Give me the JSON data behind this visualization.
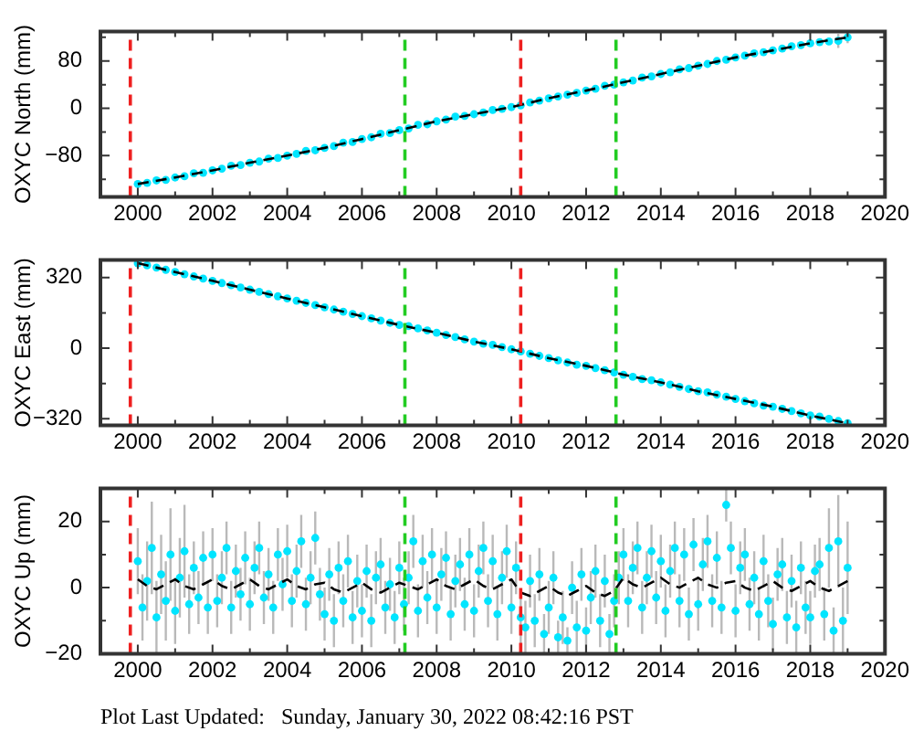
{
  "chart_data": [
    {
      "type": "scatter",
      "ylabel": "OXYC North (mm)",
      "xlim": [
        1999,
        2020
      ],
      "xticks": [
        2000,
        {
          "value": 2001,
          "label": null
        },
        2002,
        {
          "value": 2003,
          "label": null
        },
        2004,
        {
          "value": 2005,
          "label": null
        },
        2006,
        {
          "value": 2007,
          "label": null
        },
        2008,
        {
          "value": 2009,
          "label": null
        },
        2010,
        {
          "value": 2011,
          "label": null
        },
        2012,
        {
          "value": 2013,
          "label": null
        },
        2014,
        {
          "value": 2015,
          "label": null
        },
        2016,
        {
          "value": 2017,
          "label": null
        },
        2018,
        {
          "value": 2019,
          "label": null
        },
        2020
      ],
      "ylim": [
        -150,
        130
      ],
      "yticks": [
        {
          "value": -120,
          "label": null
        },
        {
          "value": -80,
          "label": "−80"
        },
        {
          "value": -40,
          "label": null
        },
        0,
        {
          "value": 40,
          "label": null
        },
        80,
        {
          "value": 120,
          "label": null
        }
      ],
      "x": [
        2000,
        2000.25,
        2000.5,
        2000.75,
        2001,
        2001.25,
        2001.5,
        2001.75,
        2002,
        2002.25,
        2002.5,
        2002.75,
        2003,
        2003.25,
        2003.5,
        2003.75,
        2004,
        2004.25,
        2004.5,
        2004.75,
        2005,
        2005.25,
        2005.5,
        2005.75,
        2006,
        2006.25,
        2006.5,
        2006.75,
        2007,
        2007.25,
        2007.5,
        2007.75,
        2008,
        2008.25,
        2008.5,
        2008.75,
        2009,
        2009.25,
        2009.5,
        2009.75,
        2010,
        2010.25,
        2010.5,
        2010.75,
        2011,
        2011.25,
        2011.5,
        2011.75,
        2012,
        2012.25,
        2012.5,
        2012.75,
        2013,
        2013.25,
        2013.5,
        2013.75,
        2014,
        2014.25,
        2014.5,
        2014.75,
        2015,
        2015.25,
        2015.5,
        2015.75,
        2016,
        2016.25,
        2016.5,
        2016.75,
        2017,
        2017.25,
        2017.5,
        2017.75,
        2018,
        2018.25,
        2018.5,
        2018.75,
        2019
      ],
      "series": [
        {
          "type": "scatter",
          "color": "#00e5ff",
          "marker": "circle",
          "values": [
            -128,
            -126,
            -122,
            -121,
            -117,
            -115,
            -110,
            -109,
            -105,
            -102,
            -97,
            -96,
            -92,
            -90,
            -85,
            -84,
            -80,
            -77,
            -72,
            -71,
            -67,
            -64,
            -58,
            -57,
            -52,
            -49,
            -43,
            -42,
            -37,
            -34,
            -28,
            -27,
            -22,
            -19,
            -14,
            -13,
            -10,
            -7,
            -3,
            -1,
            2,
            5,
            10,
            13,
            17,
            20,
            23,
            26,
            30,
            33,
            38,
            40,
            44,
            47,
            52,
            54,
            58,
            61,
            66,
            68,
            72,
            75,
            80,
            82,
            86,
            89,
            93,
            95,
            98,
            101,
            105,
            107,
            110,
            112,
            113,
            114,
            120
          ],
          "errors": [
            null,
            null,
            null,
            null,
            null,
            null,
            null,
            null,
            null,
            null,
            null,
            null,
            null,
            null,
            null,
            null,
            null,
            null,
            null,
            null,
            null,
            null,
            null,
            null,
            null,
            null,
            null,
            null,
            null,
            null,
            null,
            null,
            null,
            null,
            null,
            null,
            null,
            null,
            null,
            null,
            null,
            null,
            null,
            null,
            null,
            null,
            null,
            null,
            null,
            null,
            null,
            null,
            null,
            null,
            null,
            null,
            null,
            null,
            null,
            null,
            null,
            null,
            null,
            null,
            null,
            null,
            null,
            null,
            null,
            null,
            null,
            null,
            null,
            null,
            null,
            12,
            10
          ]
        },
        {
          "type": "line",
          "color": "#000000",
          "marker": "none",
          "line_style": "dashed",
          "x": [
            2000,
            2001,
            2002,
            2003,
            2004,
            2005,
            2006,
            2007,
            2008,
            2009,
            2010,
            2011,
            2012,
            2013,
            2014,
            2015,
            2016,
            2017,
            2018,
            2019
          ],
          "values": [
            -128,
            -117,
            -105,
            -92,
            -80,
            -67,
            -52,
            -37,
            -22,
            -10,
            2,
            17,
            30,
            44,
            58,
            72,
            86,
            98,
            110,
            120
          ]
        }
      ],
      "ref_lines": [
        {
          "axis": "x",
          "value": 1999.8,
          "color": "#ee2020",
          "line_style": "dashed"
        },
        {
          "axis": "x",
          "value": 2007.15,
          "color": "#22cc22",
          "line_style": "dashed"
        },
        {
          "axis": "x",
          "value": 2010.25,
          "color": "#ee2020",
          "line_style": "dashed"
        },
        {
          "axis": "x",
          "value": 2012.8,
          "color": "#22cc22",
          "line_style": "dashed"
        }
      ]
    },
    {
      "type": "scatter",
      "ylabel": "OXYC East (mm)",
      "xlim": [
        1999,
        2020
      ],
      "xticks": [
        2000,
        {
          "value": 2001,
          "label": null
        },
        2002,
        {
          "value": 2003,
          "label": null
        },
        2004,
        {
          "value": 2005,
          "label": null
        },
        2006,
        {
          "value": 2007,
          "label": null
        },
        2008,
        {
          "value": 2009,
          "label": null
        },
        2010,
        {
          "value": 2011,
          "label": null
        },
        2012,
        {
          "value": 2013,
          "label": null
        },
        2014,
        {
          "value": 2015,
          "label": null
        },
        2016,
        {
          "value": 2017,
          "label": null
        },
        2018,
        {
          "value": 2019,
          "label": null
        },
        2020
      ],
      "ylim": [
        -350,
        400
      ],
      "yticks": [
        {
          "value": -320,
          "label": "−320"
        },
        {
          "value": -160,
          "label": null
        },
        0,
        {
          "value": 160,
          "label": null
        },
        320
      ],
      "x": [
        2000,
        2000.25,
        2000.5,
        2000.75,
        2001,
        2001.25,
        2001.5,
        2001.75,
        2002,
        2002.25,
        2002.5,
        2002.75,
        2003,
        2003.25,
        2003.5,
        2003.75,
        2004,
        2004.25,
        2004.5,
        2004.75,
        2005,
        2005.25,
        2005.5,
        2005.75,
        2006,
        2006.25,
        2006.5,
        2006.75,
        2007,
        2007.25,
        2007.5,
        2007.75,
        2008,
        2008.25,
        2008.5,
        2008.75,
        2009,
        2009.25,
        2009.5,
        2009.75,
        2010,
        2010.25,
        2010.5,
        2010.75,
        2011,
        2011.25,
        2011.5,
        2011.75,
        2012,
        2012.25,
        2012.5,
        2012.75,
        2013,
        2013.25,
        2013.5,
        2013.75,
        2014,
        2014.25,
        2014.5,
        2014.75,
        2015,
        2015.25,
        2015.5,
        2015.75,
        2016,
        2016.25,
        2016.5,
        2016.75,
        2017,
        2017.25,
        2017.5,
        2017.75,
        2018,
        2018.25,
        2018.5,
        2018.75,
        2019
      ],
      "series": [
        {
          "type": "scatter",
          "color": "#00e5ff",
          "marker": "circle",
          "values": [
            385,
            375,
            365,
            355,
            345,
            335,
            325,
            315,
            305,
            295,
            285,
            275,
            265,
            255,
            245,
            235,
            225,
            215,
            205,
            195,
            185,
            175,
            165,
            155,
            145,
            135,
            125,
            115,
            105,
            100,
            90,
            80,
            70,
            60,
            50,
            40,
            30,
            20,
            15,
            5,
            -5,
            -15,
            -25,
            -35,
            -45,
            -55,
            -65,
            -75,
            -80,
            -90,
            -100,
            -110,
            -120,
            -130,
            -140,
            -145,
            -155,
            -165,
            -175,
            -185,
            -195,
            -200,
            -210,
            -220,
            -230,
            -240,
            -250,
            -260,
            -265,
            -275,
            -285,
            -295,
            -305,
            -310,
            -320,
            -330,
            -340
          ]
        },
        {
          "type": "line",
          "color": "#000000",
          "marker": "none",
          "line_style": "dashed",
          "x": [
            2000,
            2001,
            2002,
            2003,
            2004,
            2005,
            2006,
            2007,
            2008,
            2009,
            2010,
            2011,
            2012,
            2013,
            2014,
            2015,
            2016,
            2017,
            2018,
            2019
          ],
          "values": [
            385,
            345,
            305,
            265,
            225,
            185,
            145,
            105,
            70,
            30,
            -5,
            -45,
            -80,
            -120,
            -155,
            -195,
            -230,
            -265,
            -305,
            -340
          ]
        }
      ],
      "ref_lines": [
        {
          "axis": "x",
          "value": 1999.8,
          "color": "#ee2020",
          "line_style": "dashed"
        },
        {
          "axis": "x",
          "value": 2007.15,
          "color": "#22cc22",
          "line_style": "dashed"
        },
        {
          "axis": "x",
          "value": 2010.25,
          "color": "#ee2020",
          "line_style": "dashed"
        },
        {
          "axis": "x",
          "value": 2012.8,
          "color": "#22cc22",
          "line_style": "dashed"
        }
      ]
    },
    {
      "type": "scatter",
      "ylabel": "OXYC Up (mm)",
      "xlim": [
        1999,
        2020
      ],
      "xticks": [
        2000,
        {
          "value": 2001,
          "label": null
        },
        2002,
        {
          "value": 2003,
          "label": null
        },
        2004,
        {
          "value": 2005,
          "label": null
        },
        2006,
        {
          "value": 2007,
          "label": null
        },
        2008,
        {
          "value": 2009,
          "label": null
        },
        2010,
        {
          "value": 2011,
          "label": null
        },
        2012,
        {
          "value": 2013,
          "label": null
        },
        2014,
        {
          "value": 2015,
          "label": null
        },
        2016,
        {
          "value": 2017,
          "label": null
        },
        2018,
        {
          "value": 2019,
          "label": null
        },
        2020
      ],
      "ylim": [
        -20,
        30
      ],
      "yticks": [
        {
          "value": -20,
          "label": "−20"
        },
        {
          "value": -10,
          "label": null
        },
        0,
        {
          "value": 10,
          "label": null
        },
        20
      ],
      "x": [
        2000,
        2000.125,
        2000.25,
        2000.375,
        2000.5,
        2000.625,
        2000.75,
        2000.875,
        2001,
        2001.125,
        2001.25,
        2001.375,
        2001.5,
        2001.625,
        2001.75,
        2001.875,
        2002,
        2002.125,
        2002.25,
        2002.375,
        2002.5,
        2002.625,
        2002.75,
        2002.875,
        2003,
        2003.125,
        2003.25,
        2003.375,
        2003.5,
        2003.625,
        2003.75,
        2003.875,
        2004,
        2004.125,
        2004.25,
        2004.375,
        2004.5,
        2004.625,
        2004.75,
        2004.875,
        2005,
        2005.125,
        2005.25,
        2005.375,
        2005.5,
        2005.625,
        2005.75,
        2005.875,
        2006,
        2006.125,
        2006.25,
        2006.375,
        2006.5,
        2006.625,
        2006.75,
        2006.875,
        2007,
        2007.125,
        2007.25,
        2007.375,
        2007.5,
        2007.625,
        2007.75,
        2007.875,
        2008,
        2008.125,
        2008.25,
        2008.375,
        2008.5,
        2008.625,
        2008.75,
        2008.875,
        2009,
        2009.125,
        2009.25,
        2009.375,
        2009.5,
        2009.625,
        2009.75,
        2009.875,
        2010,
        2010.125,
        2010.25,
        2010.375,
        2010.5,
        2010.625,
        2010.75,
        2010.875,
        2011,
        2011.125,
        2011.25,
        2011.375,
        2011.5,
        2011.625,
        2011.75,
        2011.875,
        2012,
        2012.125,
        2012.25,
        2012.375,
        2012.5,
        2012.625,
        2012.75,
        2012.875,
        2013,
        2013.125,
        2013.25,
        2013.375,
        2013.5,
        2013.625,
        2013.75,
        2013.875,
        2014,
        2014.125,
        2014.25,
        2014.375,
        2014.5,
        2014.625,
        2014.75,
        2014.875,
        2015,
        2015.125,
        2015.25,
        2015.375,
        2015.5,
        2015.625,
        2015.75,
        2015.875,
        2016,
        2016.125,
        2016.25,
        2016.375,
        2016.5,
        2016.625,
        2016.75,
        2016.875,
        2017,
        2017.125,
        2017.25,
        2017.375,
        2017.5,
        2017.625,
        2017.75,
        2017.875,
        2018,
        2018.125,
        2018.25,
        2018.375,
        2018.5,
        2018.625,
        2018.75,
        2018.875,
        2019
      ],
      "series": [
        {
          "type": "scatter",
          "color": "#00e5ff",
          "marker": "circle",
          "values": [
            8,
            -6,
            2,
            12,
            -9,
            4,
            -4,
            10,
            -7,
            3,
            11,
            -5,
            6,
            -3,
            9,
            -6,
            10,
            -4,
            3,
            12,
            -6,
            5,
            -2,
            9,
            -5,
            6,
            12,
            -3,
            4,
            -6,
            10,
            1,
            11,
            -4,
            5,
            14,
            -5,
            3,
            15,
            -2,
            -8,
            4,
            -10,
            6,
            -4,
            8,
            -9,
            2,
            -7,
            5,
            -10,
            3,
            7,
            -6,
            1,
            -9,
            6,
            -5,
            3,
            14,
            -7,
            8,
            -3,
            10,
            -6,
            4,
            9,
            -8,
            2,
            7,
            -5,
            10,
            -7,
            5,
            12,
            -4,
            8,
            -8,
            3,
            11,
            -6,
            6,
            -9,
            -12,
            2,
            -10,
            4,
            -14,
            -6,
            3,
            -15,
            -9,
            -16,
            0,
            -12,
            4,
            -13,
            -3,
            5,
            -10,
            2,
            -14,
            -4,
            3,
            10,
            -4,
            6,
            12,
            -6,
            3,
            11,
            -3,
            8,
            -7,
            5,
            12,
            -4,
            10,
            -8,
            13,
            -5,
            7,
            14,
            -4,
            9,
            -6,
            25,
            12,
            -7,
            6,
            10,
            -5,
            3,
            -8,
            8,
            -4,
            -11,
            4,
            7,
            -9,
            2,
            -12,
            6,
            -6,
            -9,
            5,
            7,
            -8,
            12,
            -13,
            14,
            -10,
            6
          ],
          "errors": [
            10,
            10,
            12,
            14,
            11,
            12,
            12,
            14,
            10,
            12,
            14,
            9,
            8,
            8,
            8,
            8,
            8,
            8,
            8,
            8,
            8,
            8,
            8,
            8,
            8,
            8,
            8,
            8,
            8,
            8,
            8,
            8,
            8,
            8,
            8,
            8,
            8,
            8,
            8,
            8,
            8,
            8,
            8,
            8,
            8,
            8,
            8,
            8,
            8,
            8,
            8,
            8,
            8,
            8,
            8,
            8,
            8,
            8,
            8,
            8,
            8,
            8,
            8,
            8,
            8,
            8,
            8,
            8,
            8,
            8,
            8,
            8,
            8,
            8,
            8,
            8,
            8,
            8,
            8,
            8,
            8,
            8,
            8,
            8,
            8,
            8,
            8,
            6,
            8,
            8,
            5,
            8,
            4,
            8,
            8,
            8,
            7,
            8,
            8,
            8,
            8,
            6,
            8,
            8,
            8,
            8,
            8,
            8,
            8,
            8,
            8,
            8,
            8,
            8,
            8,
            8,
            8,
            8,
            8,
            8,
            8,
            8,
            8,
            8,
            8,
            8,
            5,
            8,
            8,
            8,
            8,
            8,
            8,
            8,
            8,
            8,
            8,
            8,
            8,
            8,
            8,
            8,
            8,
            8,
            8,
            8,
            8,
            8,
            12,
            7,
            14,
            10,
            14
          ]
        },
        {
          "type": "line",
          "color": "#000000",
          "marker": "none",
          "line_style": "dashed",
          "x": [
            2000,
            2000.25,
            2000.5,
            2000.75,
            2001,
            2001.25,
            2001.5,
            2001.75,
            2002,
            2002.25,
            2002.5,
            2002.75,
            2003,
            2003.25,
            2003.5,
            2003.75,
            2004,
            2004.25,
            2004.5,
            2004.75,
            2005,
            2005.25,
            2005.5,
            2005.75,
            2006,
            2006.25,
            2006.5,
            2006.75,
            2007,
            2007.25,
            2007.5,
            2007.75,
            2008,
            2008.25,
            2008.5,
            2008.75,
            2009,
            2009.25,
            2009.5,
            2009.75,
            2010,
            2010.25,
            2010.5,
            2010.75,
            2011,
            2011.25,
            2011.5,
            2011.75,
            2012,
            2012.25,
            2012.5,
            2012.75,
            2013,
            2013.25,
            2013.5,
            2013.75,
            2014,
            2014.25,
            2014.5,
            2014.75,
            2015,
            2015.25,
            2015.5,
            2015.75,
            2016,
            2016.25,
            2016.5,
            2016.75,
            2017,
            2017.25,
            2017.5,
            2017.75,
            2018,
            2018.25,
            2018.5,
            2018.75,
            2019
          ],
          "values": [
            2.5,
            0.5,
            -0.5,
            1,
            2.5,
            0.5,
            -0.5,
            1,
            2.5,
            0.5,
            -0.5,
            1,
            2.5,
            0.5,
            -0.5,
            1,
            2.5,
            0.5,
            -0.5,
            1,
            1.5,
            -0.5,
            -1.5,
            0,
            1.5,
            -0.5,
            -1.5,
            0,
            1.5,
            0.5,
            -0.5,
            1,
            2.5,
            0.5,
            -0.5,
            1,
            2.5,
            0.5,
            -0.5,
            1,
            2.5,
            -1.5,
            -2.5,
            -1,
            0.5,
            -1.5,
            -2.5,
            -1,
            0.5,
            -1.5,
            -2.5,
            -1,
            3,
            1,
            0,
            1.5,
            3,
            1,
            0,
            1.5,
            3,
            1,
            0,
            1.5,
            2,
            0,
            -1,
            0.5,
            2,
            0,
            -1,
            0.5,
            2,
            0,
            -1,
            0.5,
            2
          ]
        }
      ],
      "ref_lines": [
        {
          "axis": "x",
          "value": 1999.8,
          "color": "#ee2020",
          "line_style": "dashed"
        },
        {
          "axis": "x",
          "value": 2007.15,
          "color": "#22cc22",
          "line_style": "dashed"
        },
        {
          "axis": "x",
          "value": 2010.25,
          "color": "#ee2020",
          "line_style": "dashed"
        },
        {
          "axis": "x",
          "value": 2012.8,
          "color": "#22cc22",
          "line_style": "dashed"
        }
      ],
      "annotations": [
        "Plot Last Updated:   Sunday, January 30, 2022 08:42:16 PST"
      ]
    }
  ]
}
